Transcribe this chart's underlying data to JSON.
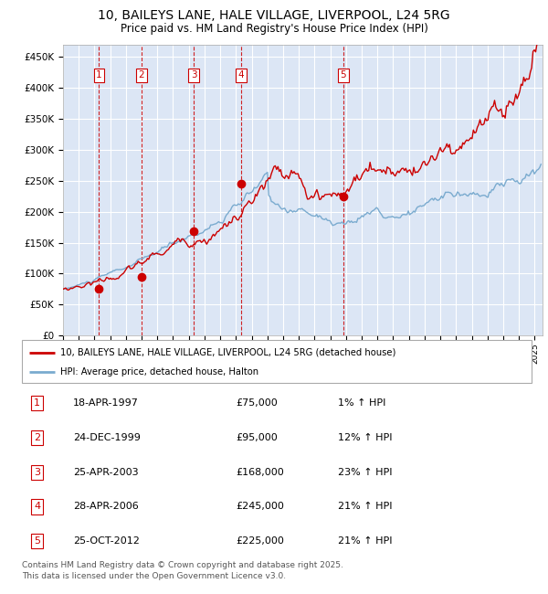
{
  "title": "10, BAILEYS LANE, HALE VILLAGE, LIVERPOOL, L24 5RG",
  "subtitle": "Price paid vs. HM Land Registry's House Price Index (HPI)",
  "title_fontsize": 10,
  "subtitle_fontsize": 8.5,
  "ylabel_ticks": [
    "£0",
    "£50K",
    "£100K",
    "£150K",
    "£200K",
    "£250K",
    "£300K",
    "£350K",
    "£400K",
    "£450K"
  ],
  "ytick_values": [
    0,
    50000,
    100000,
    150000,
    200000,
    250000,
    300000,
    350000,
    400000,
    450000
  ],
  "ylim": [
    0,
    470000
  ],
  "xlim_start": 1995.0,
  "xlim_end": 2025.5,
  "background_color": "#dce6f5",
  "grid_color": "#ffffff",
  "red_line_color": "#cc0000",
  "blue_line_color": "#7aabcf",
  "dashed_line_color": "#cc0000",
  "sale_dates_x": [
    1997.29,
    1999.98,
    2003.32,
    2006.33,
    2012.82
  ],
  "sale_prices_y": [
    75000,
    95000,
    168000,
    245000,
    225000
  ],
  "sale_labels": [
    "1",
    "2",
    "3",
    "4",
    "5"
  ],
  "legend_line1": "10, BAILEYS LANE, HALE VILLAGE, LIVERPOOL, L24 5RG (detached house)",
  "legend_line2": "HPI: Average price, detached house, Halton",
  "table_rows": [
    [
      "1",
      "18-APR-1997",
      "£75,000",
      "1% ↑ HPI"
    ],
    [
      "2",
      "24-DEC-1999",
      "£95,000",
      "12% ↑ HPI"
    ],
    [
      "3",
      "25-APR-2003",
      "£168,000",
      "23% ↑ HPI"
    ],
    [
      "4",
      "28-APR-2006",
      "£245,000",
      "21% ↑ HPI"
    ],
    [
      "5",
      "25-OCT-2012",
      "£225,000",
      "21% ↑ HPI"
    ]
  ],
  "footnote": "Contains HM Land Registry data © Crown copyright and database right 2025.\nThis data is licensed under the Open Government Licence v3.0.",
  "footnote_fontsize": 6.5
}
